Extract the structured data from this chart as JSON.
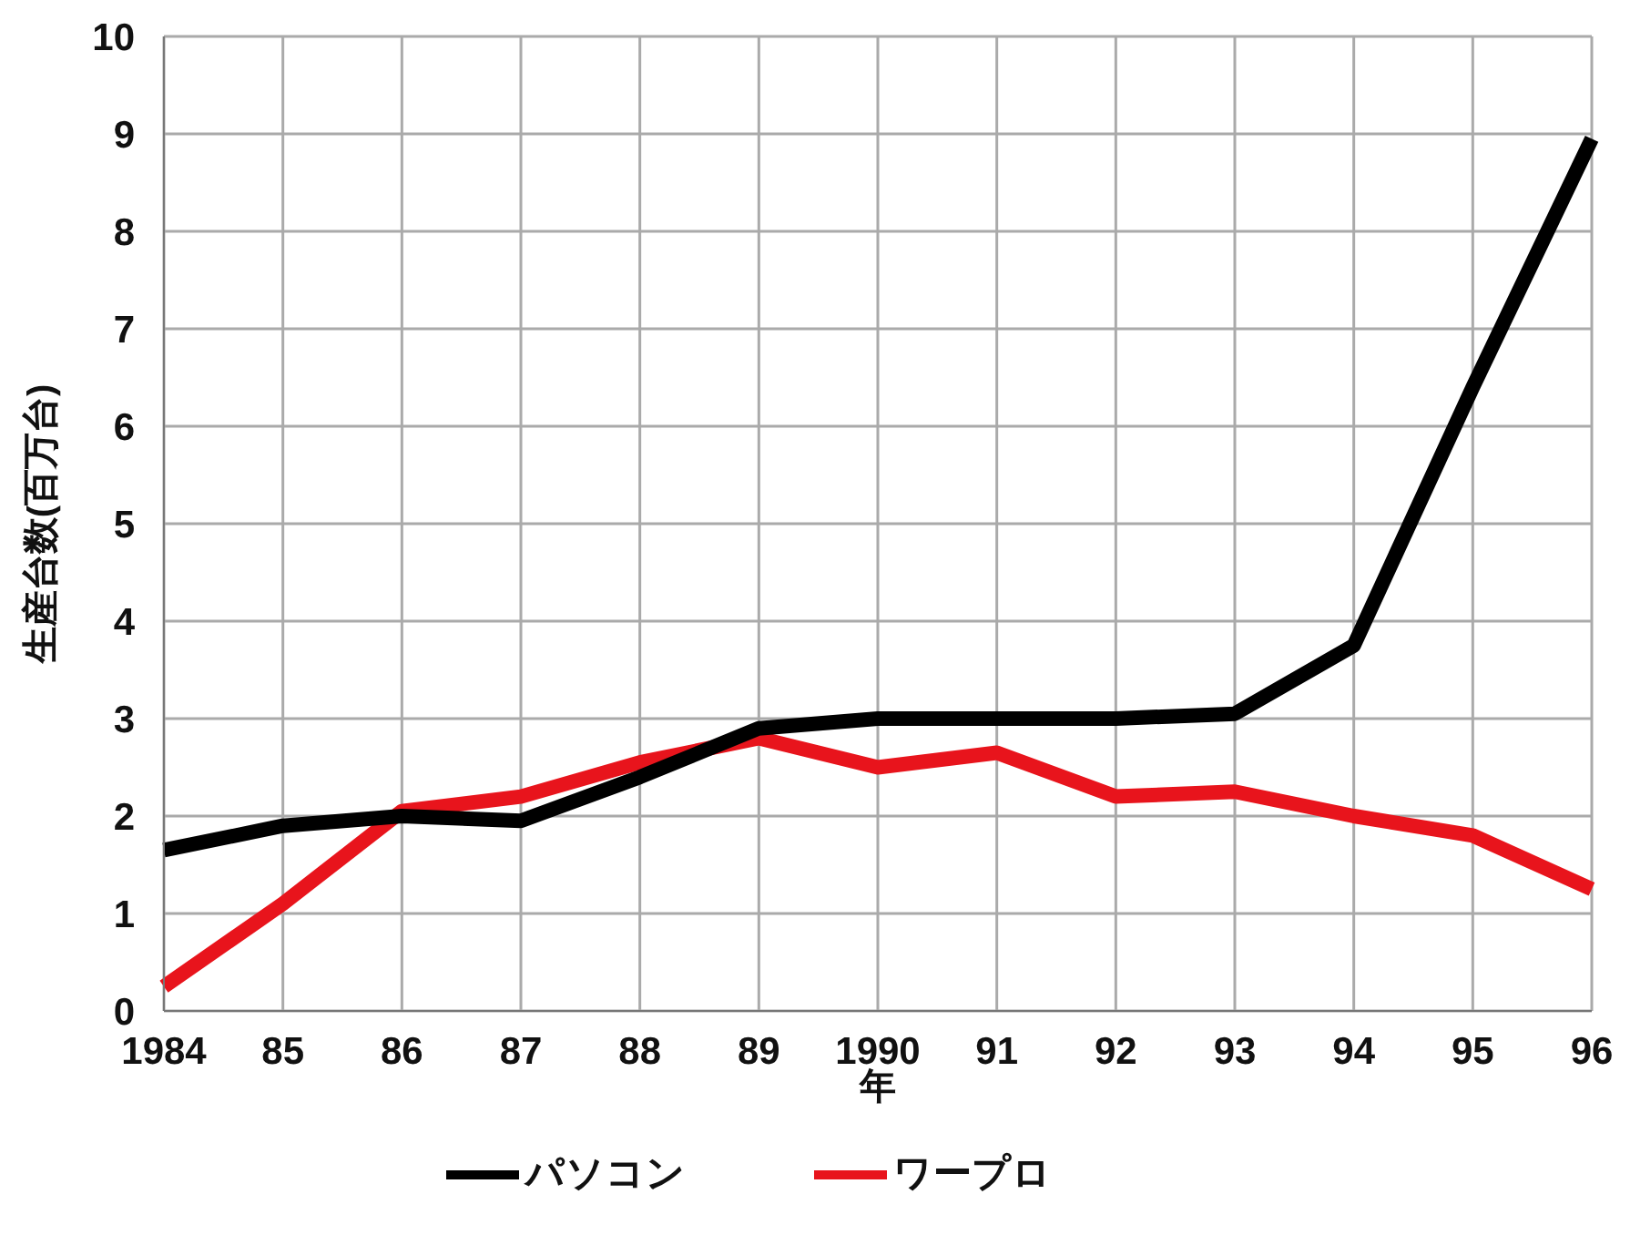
{
  "chart_data": {
    "type": "line",
    "xlabel": "年",
    "ylabel": "生産台数(百万台)",
    "categories": [
      "1984",
      "85",
      "86",
      "87",
      "88",
      "89",
      "1990",
      "91",
      "92",
      "93",
      "94",
      "95",
      "96"
    ],
    "series": [
      {
        "name": "ワープロ",
        "color": "#e8141c",
        "values": [
          0.25,
          1.1,
          2.05,
          2.2,
          2.55,
          2.8,
          2.5,
          2.65,
          2.2,
          2.25,
          2.0,
          1.8,
          1.25
        ]
      },
      {
        "name": "パソコン",
        "color": "#000000",
        "values": [
          1.65,
          1.9,
          2.0,
          1.95,
          2.4,
          2.9,
          3.0,
          3.0,
          3.0,
          3.05,
          3.75,
          6.4,
          8.95
        ]
      }
    ],
    "ylim": [
      0,
      10
    ],
    "yticks": [
      0,
      1,
      2,
      3,
      4,
      5,
      6,
      7,
      8,
      9,
      10
    ],
    "grid": true,
    "legend": "bottom",
    "marker": "none",
    "line_style": "solid"
  }
}
